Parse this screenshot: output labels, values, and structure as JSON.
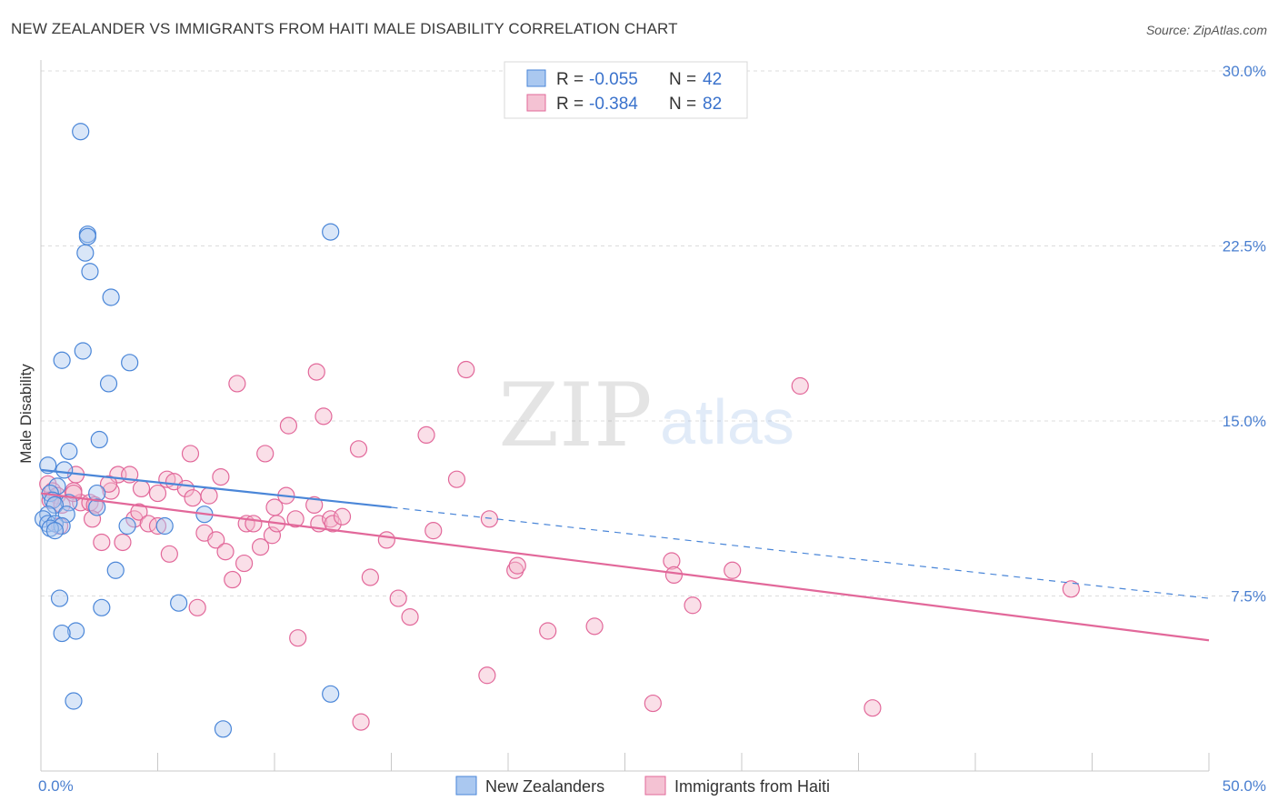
{
  "title": "NEW ZEALANDER VS IMMIGRANTS FROM HAITI MALE DISABILITY CORRELATION CHART",
  "source": "Source: ZipAtlas.com",
  "watermark": {
    "zip": "ZIP",
    "atlas": "atlas"
  },
  "colors": {
    "blue": "#4a86d8",
    "blue_fill": "#aac8f0",
    "pink": "#e2689a",
    "pink_fill": "#f4b8cc",
    "axis_label": "#4a7fd0"
  },
  "legend": {
    "rows": [
      {
        "r_label": "R =",
        "r_value": "-0.055",
        "n_label": "N =",
        "n_value": "42",
        "series": "blue"
      },
      {
        "r_label": "R =",
        "r_value": "-0.384",
        "n_label": "N =",
        "n_value": "82",
        "series": "pink"
      }
    ]
  },
  "chart_data": {
    "type": "scatter",
    "title": "NEW ZEALANDER VS IMMIGRANTS FROM HAITI MALE DISABILITY CORRELATION CHART",
    "xlabel": "",
    "ylabel": "Male Disability",
    "xlim": [
      0,
      50
    ],
    "ylim": [
      0,
      30
    ],
    "x_tick_labels": [
      "0.0%",
      "50.0%"
    ],
    "y_ticks": [
      7.5,
      15.0,
      22.5,
      30.0
    ],
    "y_tick_labels": [
      "7.5%",
      "15.0%",
      "22.5%",
      "30.0%"
    ],
    "grid": true,
    "legend_position": "top-center",
    "series": [
      {
        "name": "New Zealanders",
        "color": "#4a86d8",
        "r": -0.055,
        "n": 42,
        "trend": {
          "x": [
            0,
            15
          ],
          "y": [
            12.9,
            11.3
          ],
          "dashed_to": [
            50,
            7.4
          ]
        },
        "points": [
          [
            1.7,
            27.4
          ],
          [
            2.0,
            23.0
          ],
          [
            2.0,
            22.9
          ],
          [
            1.9,
            22.2
          ],
          [
            2.1,
            21.4
          ],
          [
            3.0,
            20.3
          ],
          [
            12.4,
            23.1
          ],
          [
            1.8,
            18.0
          ],
          [
            0.9,
            17.6
          ],
          [
            3.8,
            17.5
          ],
          [
            2.9,
            16.6
          ],
          [
            2.5,
            14.2
          ],
          [
            1.2,
            13.7
          ],
          [
            0.3,
            13.1
          ],
          [
            1.0,
            12.9
          ],
          [
            0.7,
            12.2
          ],
          [
            0.4,
            11.9
          ],
          [
            2.4,
            11.9
          ],
          [
            0.5,
            11.6
          ],
          [
            1.2,
            11.5
          ],
          [
            0.6,
            11.4
          ],
          [
            2.4,
            11.3
          ],
          [
            0.3,
            11.0
          ],
          [
            1.1,
            11.0
          ],
          [
            0.1,
            10.8
          ],
          [
            7.0,
            11.0
          ],
          [
            0.3,
            10.6
          ],
          [
            0.6,
            10.6
          ],
          [
            0.9,
            10.5
          ],
          [
            3.7,
            10.5
          ],
          [
            5.3,
            10.5
          ],
          [
            0.4,
            10.4
          ],
          [
            0.6,
            10.3
          ],
          [
            3.2,
            8.6
          ],
          [
            0.8,
            7.4
          ],
          [
            2.6,
            7.0
          ],
          [
            5.9,
            7.2
          ],
          [
            1.5,
            6.0
          ],
          [
            0.9,
            5.9
          ],
          [
            1.4,
            3.0
          ],
          [
            12.4,
            3.3
          ],
          [
            7.8,
            1.8
          ]
        ]
      },
      {
        "name": "Immigrants from Haiti",
        "color": "#e2689a",
        "r": -0.384,
        "n": 82,
        "trend": {
          "x": [
            0,
            50
          ],
          "y": [
            11.9,
            5.6
          ]
        },
        "points": [
          [
            0.3,
            12.3
          ],
          [
            0.5,
            12.0
          ],
          [
            0.7,
            11.8
          ],
          [
            0.4,
            11.6
          ],
          [
            0.9,
            11.4
          ],
          [
            1.4,
            12.0
          ],
          [
            1.5,
            12.7
          ],
          [
            1.7,
            11.5
          ],
          [
            2.1,
            11.5
          ],
          [
            1.4,
            11.9
          ],
          [
            2.3,
            11.4
          ],
          [
            0.8,
            10.5
          ],
          [
            2.2,
            10.8
          ],
          [
            2.6,
            9.8
          ],
          [
            3.0,
            12.0
          ],
          [
            3.3,
            12.7
          ],
          [
            2.9,
            12.3
          ],
          [
            3.8,
            12.7
          ],
          [
            3.5,
            9.8
          ],
          [
            4.0,
            10.8
          ],
          [
            4.2,
            11.1
          ],
          [
            4.3,
            12.1
          ],
          [
            4.6,
            10.6
          ],
          [
            5.0,
            10.5
          ],
          [
            5.0,
            11.9
          ],
          [
            5.4,
            12.5
          ],
          [
            5.5,
            9.3
          ],
          [
            5.7,
            12.4
          ],
          [
            6.2,
            12.1
          ],
          [
            6.4,
            13.6
          ],
          [
            6.5,
            11.7
          ],
          [
            6.7,
            7.0
          ],
          [
            7.0,
            10.2
          ],
          [
            7.2,
            11.8
          ],
          [
            7.5,
            9.9
          ],
          [
            7.7,
            12.6
          ],
          [
            7.9,
            9.4
          ],
          [
            8.2,
            8.2
          ],
          [
            8.4,
            16.6
          ],
          [
            8.7,
            8.9
          ],
          [
            8.8,
            10.6
          ],
          [
            9.1,
            10.6
          ],
          [
            9.4,
            9.6
          ],
          [
            9.6,
            13.6
          ],
          [
            9.9,
            10.1
          ],
          [
            10.0,
            11.3
          ],
          [
            10.1,
            10.6
          ],
          [
            10.5,
            11.8
          ],
          [
            10.6,
            14.8
          ],
          [
            10.9,
            10.8
          ],
          [
            11.0,
            5.7
          ],
          [
            11.7,
            11.4
          ],
          [
            11.8,
            17.1
          ],
          [
            11.9,
            10.6
          ],
          [
            12.1,
            15.2
          ],
          [
            12.4,
            10.8
          ],
          [
            12.5,
            10.6
          ],
          [
            12.9,
            10.9
          ],
          [
            13.6,
            13.8
          ],
          [
            13.7,
            2.1
          ],
          [
            14.1,
            8.3
          ],
          [
            14.8,
            9.9
          ],
          [
            15.3,
            7.4
          ],
          [
            15.8,
            6.6
          ],
          [
            16.5,
            14.4
          ],
          [
            16.8,
            10.3
          ],
          [
            17.8,
            12.5
          ],
          [
            18.2,
            17.2
          ],
          [
            19.1,
            4.1
          ],
          [
            19.2,
            10.8
          ],
          [
            20.3,
            8.6
          ],
          [
            20.4,
            8.8
          ],
          [
            21.7,
            6.0
          ],
          [
            23.7,
            6.2
          ],
          [
            26.2,
            2.9
          ],
          [
            27.0,
            9.0
          ],
          [
            27.1,
            8.4
          ],
          [
            27.9,
            7.1
          ],
          [
            29.6,
            8.6
          ],
          [
            32.5,
            16.5
          ],
          [
            35.6,
            2.7
          ],
          [
            44.1,
            7.8
          ]
        ]
      }
    ]
  },
  "bottom_legend": [
    {
      "label": "New Zealanders",
      "series": "blue"
    },
    {
      "label": "Immigrants from Haiti",
      "series": "pink"
    }
  ]
}
